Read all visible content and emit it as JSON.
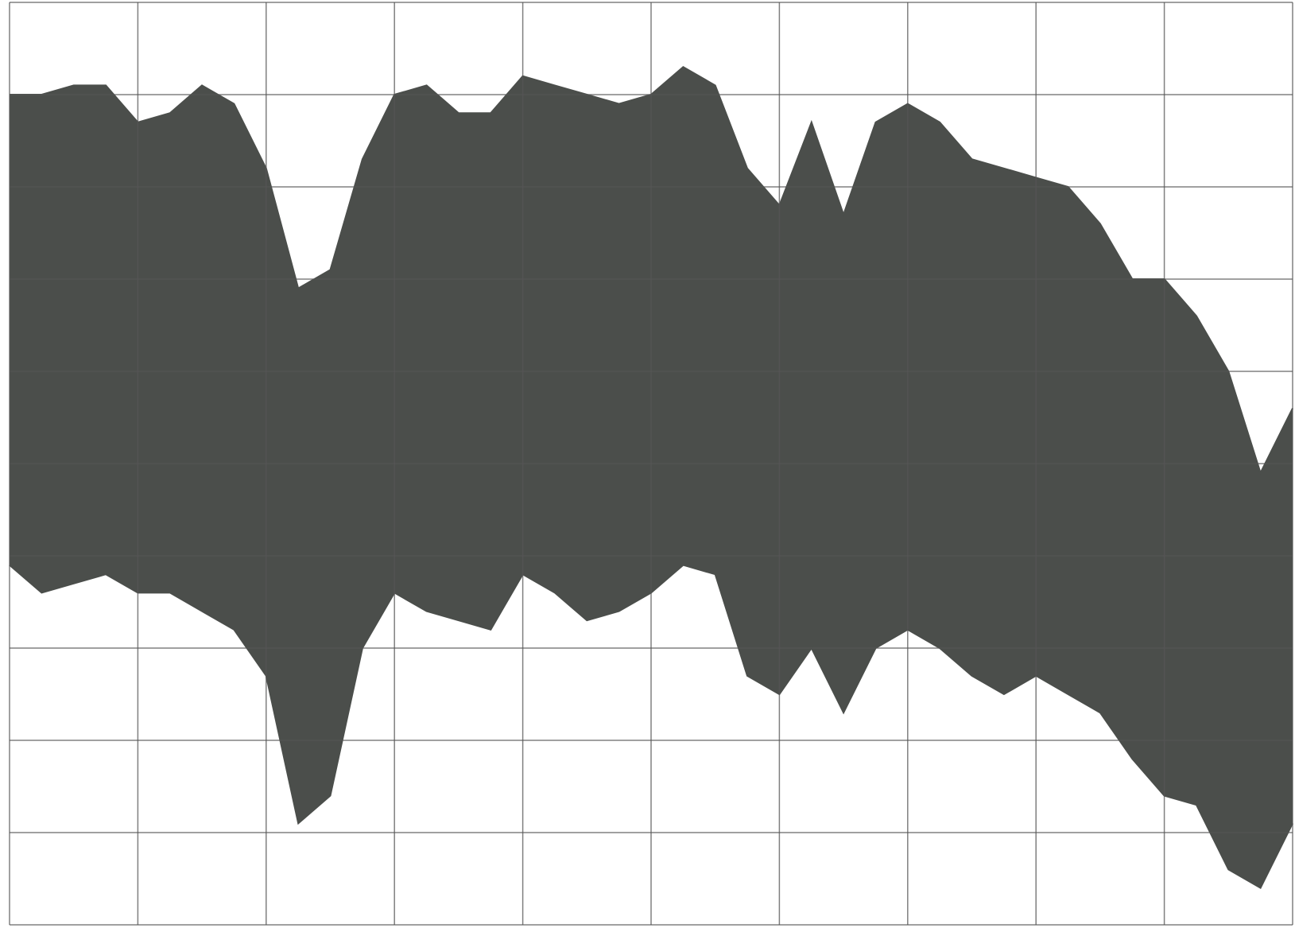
{
  "chart_data": {
    "type": "range_area",
    "x": [
      0,
      0.25,
      0.5,
      0.75,
      1,
      1.25,
      1.5,
      1.75,
      2,
      2.25,
      2.5,
      2.75,
      3,
      3.25,
      3.5,
      3.75,
      4,
      4.25,
      4.5,
      4.75,
      5,
      5.25,
      5.5,
      5.75,
      6,
      6.25,
      6.5,
      6.75,
      7,
      7.25,
      7.5,
      7.75,
      8,
      8.25,
      8.5,
      8.75,
      9,
      9.25,
      9.5,
      9.75,
      10
    ],
    "series": [
      {
        "color": "#4b4e4b",
        "values": [
          9.0,
          9.0,
          9.1,
          9.1,
          8.7,
          8.8,
          9.1,
          8.9,
          8.2,
          6.9,
          7.1,
          8.3,
          9.0,
          9.1,
          8.8,
          8.8,
          9.2,
          9.1,
          9.0,
          8.9,
          9.0,
          9.3,
          9.1,
          8.2,
          7.8,
          8.7,
          7.7,
          8.7,
          8.9,
          8.7,
          8.3,
          8.2,
          8.1,
          8.0,
          7.6,
          7.0,
          7.0,
          6.6,
          6.0,
          4.9,
          5.6
        ]
      },
      {
        "color": "#4b4e4b",
        "values": [
          3.9,
          3.6,
          3.7,
          3.8,
          3.6,
          3.6,
          3.4,
          3.2,
          2.7,
          1.1,
          1.4,
          3.0,
          3.6,
          3.4,
          3.3,
          3.2,
          3.8,
          3.6,
          3.3,
          3.4,
          3.6,
          3.9,
          3.8,
          2.7,
          2.5,
          3.0,
          2.3,
          3.0,
          3.2,
          3.0,
          2.7,
          2.5,
          2.7,
          2.5,
          2.3,
          1.8,
          1.4,
          1.3,
          0.6,
          0.4,
          1.1
        ]
      }
    ],
    "xlim": [
      0,
      10
    ],
    "ylim": [
      0,
      10
    ],
    "xticks": [
      0,
      1,
      2,
      3,
      4,
      5,
      6,
      7,
      8,
      9,
      10
    ],
    "yticks": [
      0,
      1,
      2,
      3,
      4,
      5,
      6,
      7,
      8,
      9,
      10
    ],
    "grid": true
  }
}
